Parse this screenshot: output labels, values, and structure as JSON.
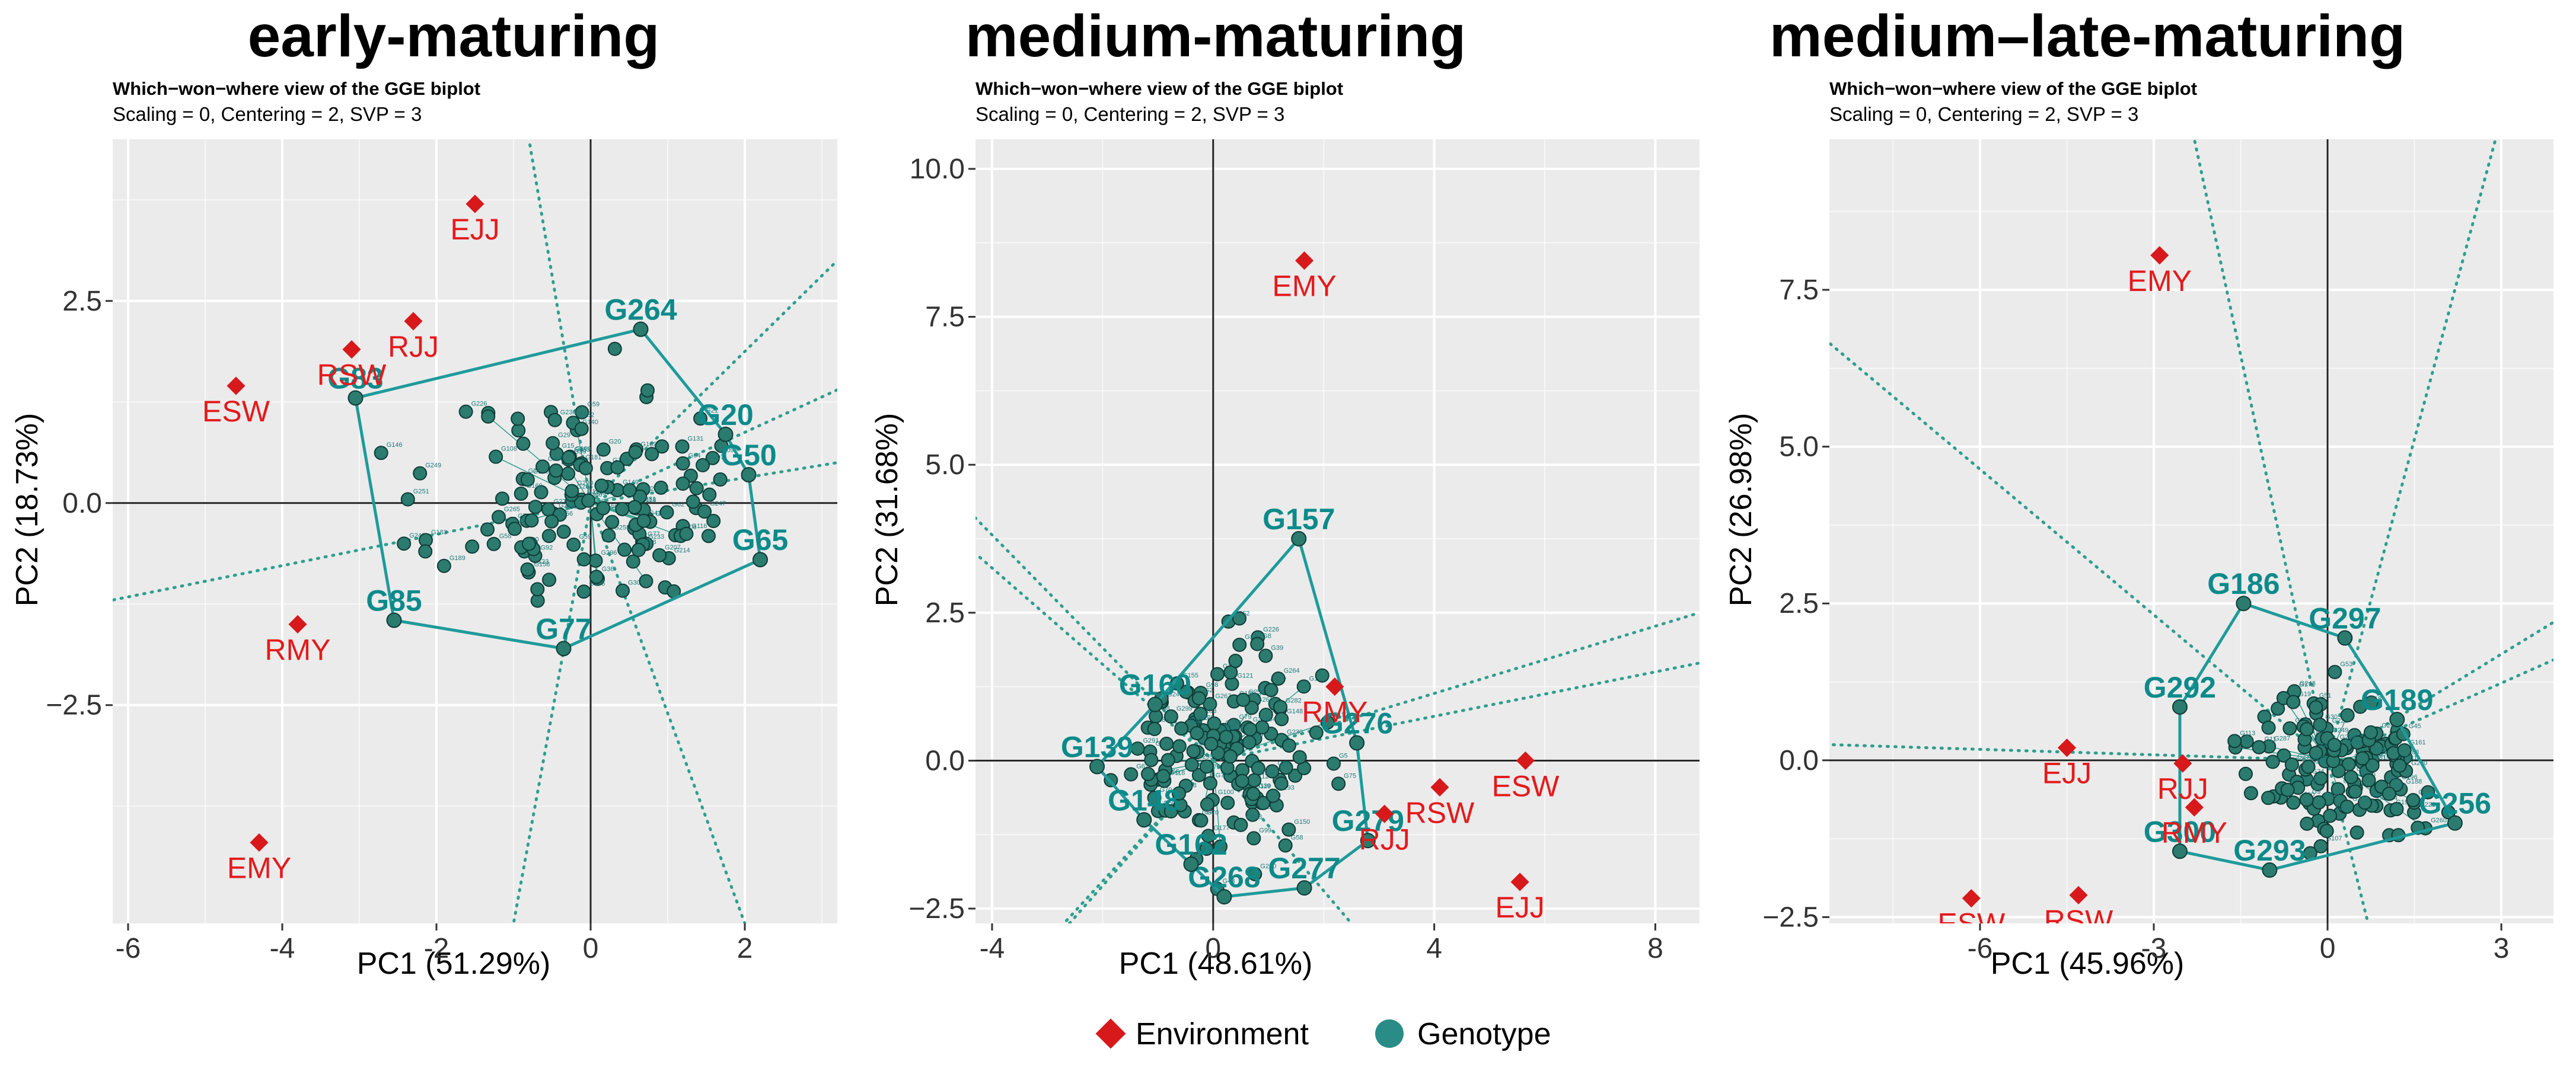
{
  "chart_data": [
    {
      "type": "scatter",
      "title": "early-maturing",
      "subtitle": "Which−won−where view of the GGE biplot",
      "subtitle2": "Scaling = 0, Centering = 2, SVP = 3",
      "xlabel": "PC1 (51.29%)",
      "ylabel": "PC2 (18.73%)",
      "xlim": [
        -6.2,
        3.2
      ],
      "ylim": [
        -5.2,
        4.5
      ],
      "xticks": [
        -6,
        -4,
        -2,
        0,
        2
      ],
      "yticks": [
        -2.5,
        0.0,
        2.5
      ],
      "xtick_labels": [
        "-6",
        "-4",
        "-2",
        "0",
        "2"
      ],
      "ytick_labels": [
        "−2.5",
        "0.0",
        "2.5"
      ],
      "environments": [
        {
          "name": "EJJ",
          "x": -1.5,
          "y": 3.7
        },
        {
          "name": "RJJ",
          "x": -2.3,
          "y": 2.25
        },
        {
          "name": "RSW",
          "x": -3.1,
          "y": 1.9
        },
        {
          "name": "ESW",
          "x": -4.6,
          "y": 1.45
        },
        {
          "name": "RMY",
          "x": -3.8,
          "y": -1.5
        },
        {
          "name": "EMY",
          "x": -4.3,
          "y": -4.2
        }
      ],
      "hull_genotypes": [
        {
          "name": "G264",
          "x": 0.65,
          "y": 2.15
        },
        {
          "name": "G20",
          "x": 1.75,
          "y": 0.85
        },
        {
          "name": "G50",
          "x": 2.05,
          "y": 0.35
        },
        {
          "name": "G65",
          "x": 2.2,
          "y": -0.7
        },
        {
          "name": "G77",
          "x": -0.35,
          "y": -1.8
        },
        {
          "name": "G85",
          "x": -2.55,
          "y": -1.45
        },
        {
          "name": "G83",
          "x": -3.05,
          "y": 1.3
        }
      ],
      "sector_lines": [
        {
          "x": -6.2,
          "y": -1.2
        },
        {
          "x": -0.8,
          "y": 4.5
        },
        {
          "x": 3.2,
          "y": 3.0
        },
        {
          "x": 3.2,
          "y": 1.4
        },
        {
          "x": 3.2,
          "y": 0.5
        },
        {
          "x": 2.0,
          "y": -5.2
        },
        {
          "x": -1.0,
          "y": -5.2
        }
      ],
      "genotype_count": 140,
      "genotype_center": [
        0.1,
        0.0
      ],
      "genotype_spread": [
        1.0,
        0.7
      ],
      "seed": 11
    },
    {
      "type": "scatter",
      "title": "medium-maturing",
      "subtitle": "Which−won−where view of the GGE biplot",
      "subtitle2": "Scaling = 0, Centering = 2, SVP = 3",
      "xlabel": "PC1 (48.61%)",
      "ylabel": "PC2 (31.68%)",
      "xlim": [
        -4.3,
        8.8
      ],
      "ylim": [
        -2.75,
        10.5
      ],
      "xticks": [
        -4,
        0,
        4,
        8
      ],
      "yticks": [
        -2.5,
        0.0,
        2.5,
        5.0,
        7.5,
        10.0
      ],
      "xtick_labels": [
        "-4",
        "0",
        "4",
        "8"
      ],
      "ytick_labels": [
        "−2.5",
        "0.0",
        "2.5",
        "5.0",
        "7.5",
        "10.0"
      ],
      "environments": [
        {
          "name": "EMY",
          "x": 1.65,
          "y": 8.45
        },
        {
          "name": "RMY",
          "x": 2.2,
          "y": 1.25
        },
        {
          "name": "ESW",
          "x": 5.65,
          "y": 0.0
        },
        {
          "name": "RSW",
          "x": 4.1,
          "y": -0.45
        },
        {
          "name": "RJJ",
          "x": 3.1,
          "y": -0.9
        },
        {
          "name": "EJJ",
          "x": 5.55,
          "y": -2.05
        }
      ],
      "hull_genotypes": [
        {
          "name": "G157",
          "x": 1.55,
          "y": 3.75
        },
        {
          "name": "G276",
          "x": 2.6,
          "y": 0.3
        },
        {
          "name": "G279",
          "x": 2.8,
          "y": -1.35
        },
        {
          "name": "G277",
          "x": 1.65,
          "y": -2.15
        },
        {
          "name": "G268",
          "x": 0.2,
          "y": -2.3
        },
        {
          "name": "G162",
          "x": -0.4,
          "y": -1.75
        },
        {
          "name": "G148",
          "x": -1.25,
          "y": -1.0
        },
        {
          "name": "G139",
          "x": -2.1,
          "y": -0.1
        },
        {
          "name": "G160",
          "x": -1.05,
          "y": 0.95
        }
      ],
      "sector_lines": [
        {
          "x": -4.3,
          "y": 4.1
        },
        {
          "x": -4.3,
          "y": 3.5
        },
        {
          "x": 8.8,
          "y": 2.5
        },
        {
          "x": 8.8,
          "y": 1.65
        },
        {
          "x": 2.5,
          "y": -2.75
        },
        {
          "x": -2.7,
          "y": -2.75
        },
        {
          "x": -2.6,
          "y": -2.75
        }
      ],
      "genotype_count": 150,
      "genotype_center": [
        0.0,
        0.1
      ],
      "genotype_spread": [
        0.9,
        0.9
      ],
      "seed": 23
    },
    {
      "type": "scatter",
      "title": "medium–late-maturing",
      "subtitle": "Which−won−where view of the GGE biplot",
      "subtitle2": "Scaling = 0, Centering = 2, SVP = 3",
      "xlabel": "PC1 (45.96%)",
      "ylabel": "PC2 (26.98%)",
      "xlim": [
        -8.6,
        3.9
      ],
      "ylim": [
        -2.6,
        9.9
      ],
      "xticks": [
        -6,
        -3,
        0,
        3
      ],
      "yticks": [
        -2.5,
        0.0,
        2.5,
        5.0,
        7.5
      ],
      "xtick_labels": [
        "-6",
        "-3",
        "0",
        "3"
      ],
      "ytick_labels": [
        "−2.5",
        "0.0",
        "2.5",
        "5.0",
        "7.5"
      ],
      "environments": [
        {
          "name": "EMY",
          "x": -2.9,
          "y": 8.05
        },
        {
          "name": "EJJ",
          "x": -4.5,
          "y": 0.2
        },
        {
          "name": "RJJ",
          "x": -2.5,
          "y": -0.05
        },
        {
          "name": "RMY",
          "x": -2.3,
          "y": -0.75
        },
        {
          "name": "RSW",
          "x": -4.3,
          "y": -2.15
        },
        {
          "name": "ESW",
          "x": -6.15,
          "y": -2.2
        }
      ],
      "hull_genotypes": [
        {
          "name": "G186",
          "x": -1.45,
          "y": 2.5
        },
        {
          "name": "G297",
          "x": 0.3,
          "y": 1.95
        },
        {
          "name": "G189",
          "x": 1.2,
          "y": 0.65
        },
        {
          "name": "G256",
          "x": 2.2,
          "y": -1.0
        },
        {
          "name": "G293",
          "x": -1.0,
          "y": -1.75
        },
        {
          "name": "G300",
          "x": -2.55,
          "y": -1.45
        },
        {
          "name": "G292",
          "x": -2.55,
          "y": 0.85
        }
      ],
      "sector_lines": [
        {
          "x": -8.6,
          "y": 6.65
        },
        {
          "x": -8.6,
          "y": 0.25
        },
        {
          "x": -2.3,
          "y": 9.9
        },
        {
          "x": 2.9,
          "y": 9.9
        },
        {
          "x": 3.9,
          "y": 2.2
        },
        {
          "x": 3.9,
          "y": 1.6
        },
        {
          "x": 0.7,
          "y": -2.6
        }
      ],
      "genotype_count": 140,
      "genotype_center": [
        0.3,
        -0.05
      ],
      "genotype_spread": [
        0.8,
        0.6
      ],
      "seed": 37
    }
  ],
  "legend": {
    "environment_label": "Environment",
    "genotype_label": "Genotype",
    "position": "bottom"
  },
  "colors": {
    "environment": "#e41a1c",
    "environment_marker": "#d7191c",
    "genotype": "#0d8a8a",
    "genotype_point": "#2b7b6f",
    "panel": "#ebebeb",
    "grid": "#ffffff"
  }
}
